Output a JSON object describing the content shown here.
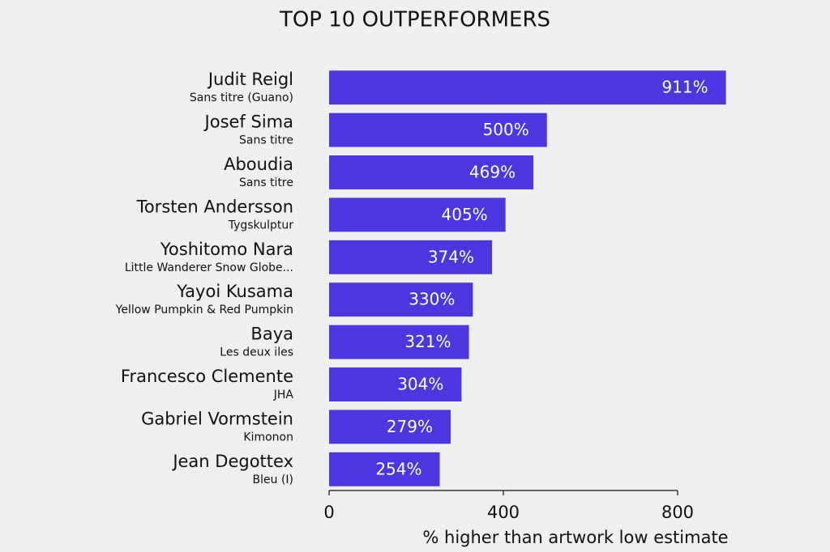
{
  "chart_data": {
    "type": "bar",
    "orientation": "horizontal",
    "title": "TOP 10 OUTPERFORMERS",
    "categories": [
      "Judit Reigl",
      "Josef Sima",
      "Aboudia",
      "Torsten Andersson",
      "Yoshitomo Nara",
      "Yayoi Kusama",
      "Baya",
      "Francesco Clemente",
      "Gabriel Vormstein",
      "Jean Degottex"
    ],
    "category_subtitles": [
      "Sans titre (Guano)",
      "Sans titre",
      "Sans titre",
      "Tygskulptur",
      "Little Wanderer Snow Globe...",
      "Yellow Pumpkin & Red Pumpkin",
      "Les deux iles",
      "JHA",
      "Kimonon",
      "Bleu (I)"
    ],
    "values": [
      911,
      500,
      469,
      405,
      374,
      330,
      321,
      304,
      279,
      254
    ],
    "value_labels": [
      "911%",
      "500%",
      "469%",
      "405%",
      "374%",
      "330%",
      "321%",
      "304%",
      "279%",
      "254%"
    ],
    "color": "#4b36e0",
    "xlabel": "% higher than artwork low estimate",
    "xlim": [
      0,
      800
    ],
    "xticks": [
      0,
      400,
      800
    ],
    "grid": false
  }
}
